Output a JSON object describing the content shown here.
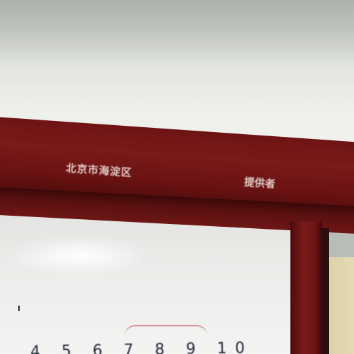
{
  "scene": {
    "beam_label_left": "北京市海淀区",
    "beam_label_right": "提供者",
    "board_numbers": "4 5 6 7 8 9 10"
  },
  "colors": {
    "frame": "#6e1414",
    "wall": "#eef0ec",
    "board": "#ecedea",
    "marker": "#222a3a"
  }
}
